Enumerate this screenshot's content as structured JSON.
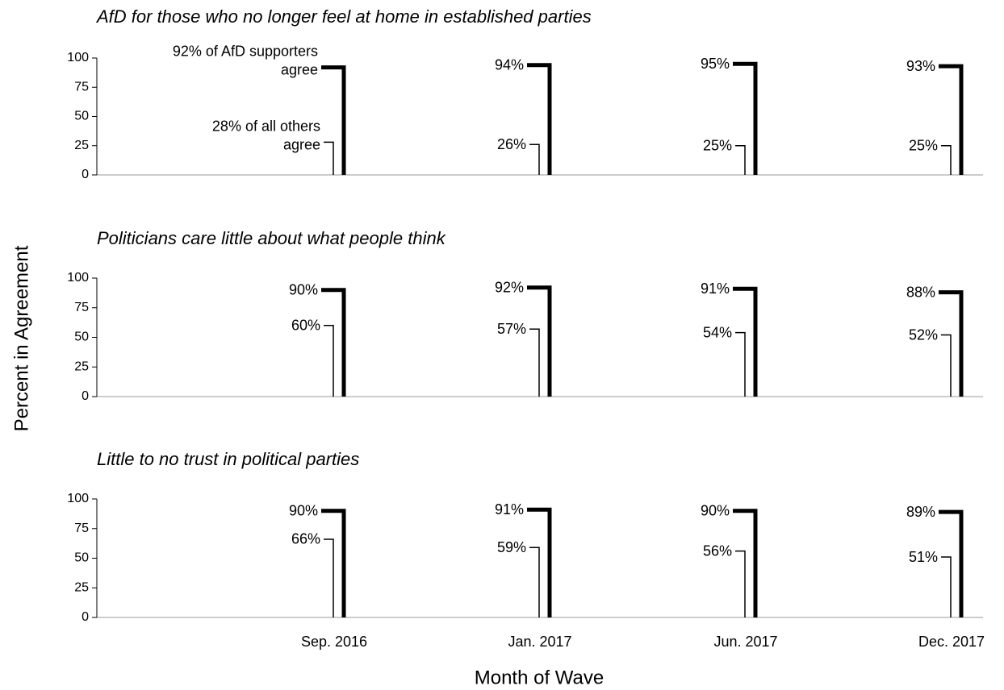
{
  "chart_data": {
    "type": "bar",
    "ylabel": "Percent in Agreement",
    "xlabel": "Month of Wave",
    "categories": [
      "Sep. 2016",
      "Jan. 2017",
      "Jun. 2017",
      "Dec. 2017"
    ],
    "panels": [
      {
        "title": "AfD for those who no longer feel at home in established parties",
        "ylim": [
          0,
          100
        ],
        "yticks": [
          0,
          25,
          50,
          75,
          100
        ],
        "series": [
          {
            "color": "#000000",
            "line_width": 1.5,
            "values": [
              28,
              26,
              25,
              25
            ],
            "value_labels": [
              "28% of all others\nagree",
              "26%",
              "25%",
              "25%"
            ]
          },
          {
            "color": "#000000",
            "line_width": 5,
            "values": [
              92,
              94,
              95,
              93
            ],
            "value_labels": [
              "92% of AfD supporters\nagree",
              "94%",
              "95%",
              "93%"
            ]
          }
        ]
      },
      {
        "title": "Politicians care little about what people think",
        "ylim": [
          0,
          100
        ],
        "yticks": [
          0,
          25,
          50,
          75,
          100
        ],
        "series": [
          {
            "color": "#000000",
            "line_width": 1.5,
            "values": [
              60,
              57,
              54,
              52
            ],
            "value_labels": [
              "60%",
              "57%",
              "54%",
              "52%"
            ]
          },
          {
            "color": "#000000",
            "line_width": 5,
            "values": [
              90,
              92,
              91,
              88
            ],
            "value_labels": [
              "90%",
              "92%",
              "91%",
              "88%"
            ]
          }
        ]
      },
      {
        "title": "Little to no trust in political parties",
        "ylim": [
          0,
          100
        ],
        "yticks": [
          0,
          25,
          50,
          75,
          100
        ],
        "series": [
          {
            "color": "#000000",
            "line_width": 1.5,
            "values": [
              66,
              59,
              56,
              51
            ],
            "value_labels": [
              "66%",
              "59%",
              "56%",
              "51%"
            ]
          },
          {
            "color": "#000000",
            "line_width": 5,
            "values": [
              90,
              91,
              90,
              89
            ],
            "value_labels": [
              "90%",
              "91%",
              "90%",
              "89%"
            ]
          }
        ]
      }
    ]
  }
}
